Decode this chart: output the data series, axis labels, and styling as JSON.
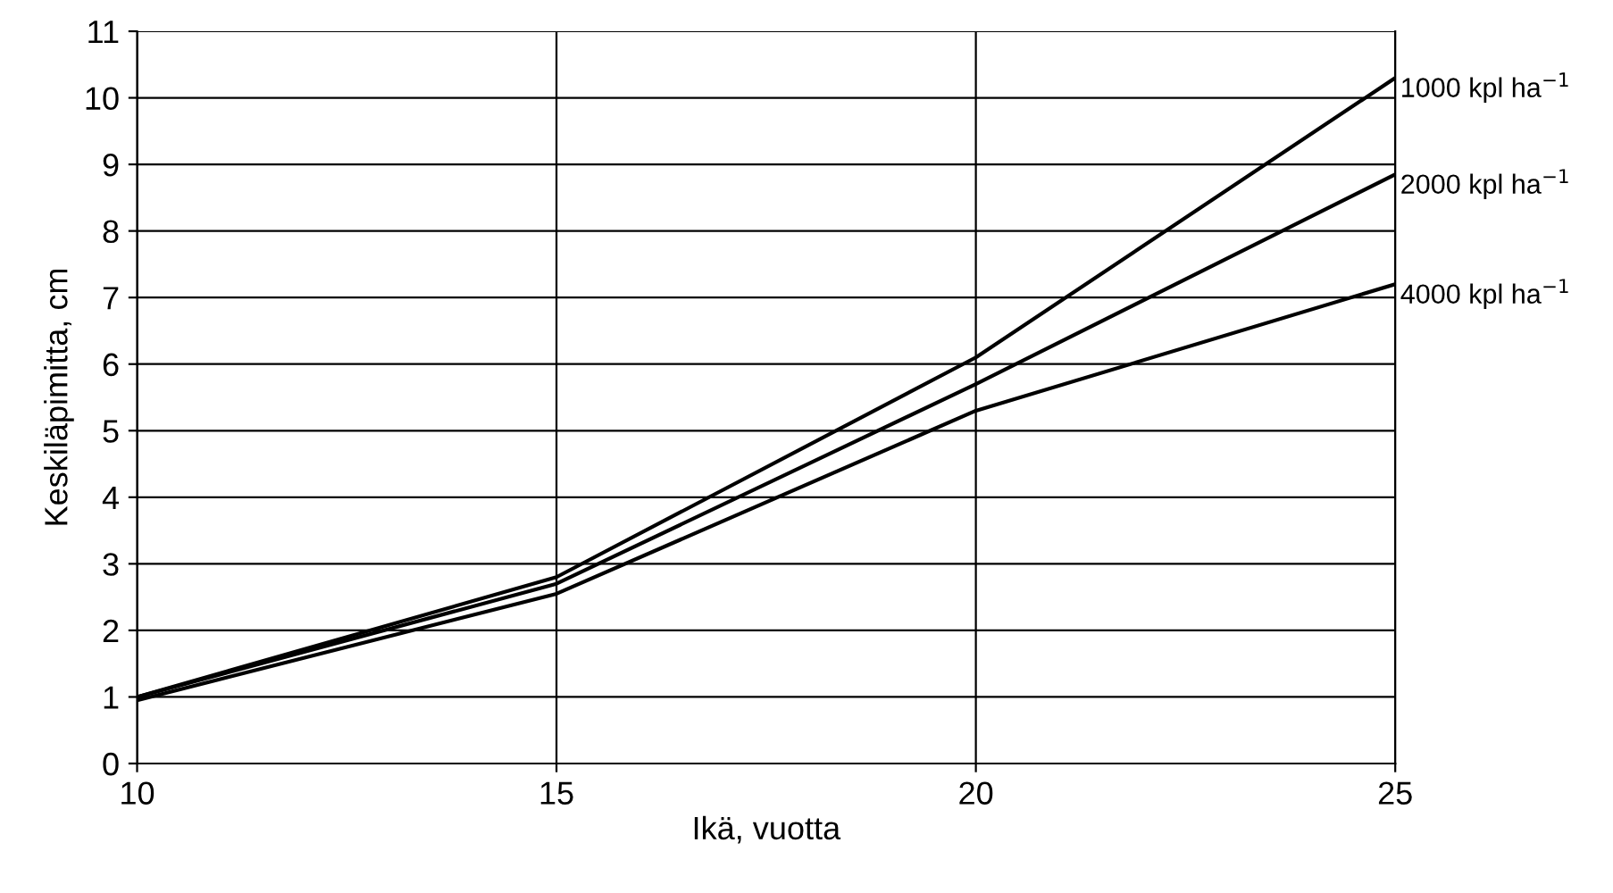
{
  "chart_data": {
    "type": "line",
    "xlabel": "Ikä, vuotta",
    "ylabel": "Keskiläpimitta, cm",
    "x": [
      10,
      15,
      20,
      25
    ],
    "series": [
      {
        "name": "1000 kpl ha$^{−1}$",
        "color": "#000000",
        "values": [
          1.0,
          2.8,
          6.1,
          10.3
        ]
      },
      {
        "name": "2000 kpl ha$^{−1}$",
        "color": "#000000",
        "values": [
          1.0,
          2.7,
          5.7,
          8.85
        ]
      },
      {
        "name": "4000 kpl ha$^{−1}$",
        "color": "#000000",
        "values": [
          0.95,
          2.55,
          5.3,
          7.2
        ]
      }
    ],
    "xlim": [
      10,
      25
    ],
    "ylim": [
      0,
      11
    ],
    "xticks": [
      10,
      15,
      20,
      25
    ],
    "yticks": [
      0,
      1,
      2,
      3,
      4,
      5,
      6,
      7,
      8,
      9,
      10,
      11
    ],
    "grid": true,
    "marker": "none",
    "line_style": "solid"
  }
}
